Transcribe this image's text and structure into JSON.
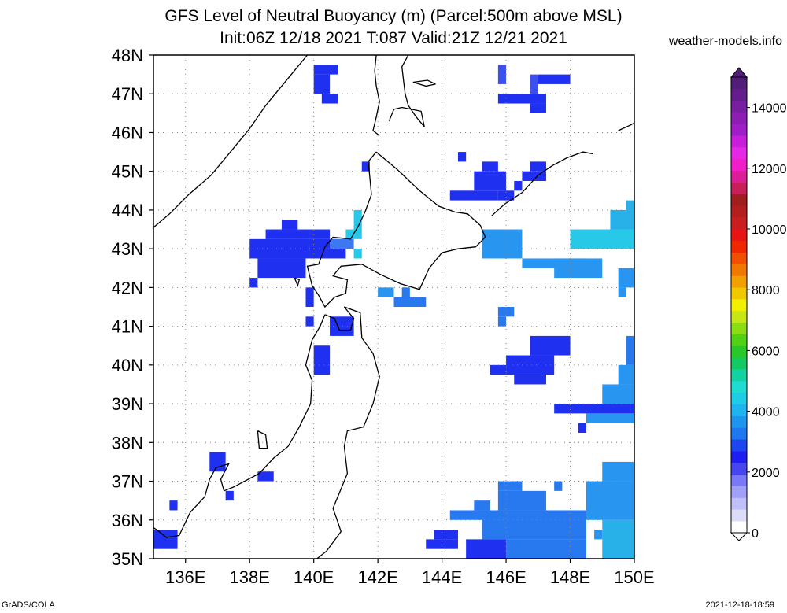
{
  "title_line1": "GFS Level of Neutral Buoyancy (m) (Parcel:500m above MSL)",
  "title_line2": "Init:06Z 12/18 2021 T:087 Valid:21Z 12/21 2021",
  "site": "weather-models.info",
  "footer_left": "GrADS/COLA",
  "footer_right": "2021-12-18-18:59",
  "map": {
    "lon_range": [
      135,
      150
    ],
    "lat_range": [
      35,
      48
    ],
    "lon_ticks": [
      {
        "value": 136,
        "label": "136E"
      },
      {
        "value": 138,
        "label": "138E"
      },
      {
        "value": 140,
        "label": "140E"
      },
      {
        "value": 142,
        "label": "142E"
      },
      {
        "value": 144,
        "label": "144E"
      },
      {
        "value": 146,
        "label": "146E"
      },
      {
        "value": 148,
        "label": "148E"
      },
      {
        "value": 150,
        "label": "150E"
      }
    ],
    "lat_ticks": [
      {
        "value": 35,
        "label": "35N"
      },
      {
        "value": 36,
        "label": "36N"
      },
      {
        "value": 37,
        "label": "37N"
      },
      {
        "value": 38,
        "label": "38N"
      },
      {
        "value": 39,
        "label": "39N"
      },
      {
        "value": 40,
        "label": "40N"
      },
      {
        "value": 41,
        "label": "41N"
      },
      {
        "value": 42,
        "label": "42N"
      },
      {
        "value": 43,
        "label": "43N"
      },
      {
        "value": 44,
        "label": "44N"
      },
      {
        "value": 45,
        "label": "45N"
      },
      {
        "value": 46,
        "label": "46N"
      },
      {
        "value": 47,
        "label": "47N"
      },
      {
        "value": 48,
        "label": "48N"
      }
    ],
    "grid": true,
    "cells": [
      {
        "lon": 140.0,
        "lat": 47.5,
        "lon2": 140.75,
        "lat2": 47.75,
        "color": "#2030f0"
      },
      {
        "lon": 140.0,
        "lat": 47.0,
        "lon2": 140.5,
        "lat2": 47.5,
        "color": "#2030f0"
      },
      {
        "lon": 140.25,
        "lat": 46.75,
        "lon2": 140.75,
        "lat2": 47.0,
        "color": "#2030f0"
      },
      {
        "lon": 145.75,
        "lat": 47.25,
        "lon2": 146.0,
        "lat2": 47.75,
        "color": "#3c50f0"
      },
      {
        "lon": 145.75,
        "lat": 46.75,
        "lon2": 147.25,
        "lat2": 47.0,
        "color": "#2030f0"
      },
      {
        "lon": 146.75,
        "lat": 46.5,
        "lon2": 147.25,
        "lat2": 46.75,
        "color": "#2030f0"
      },
      {
        "lon": 146.75,
        "lat": 47.0,
        "lon2": 147.0,
        "lat2": 47.5,
        "color": "#3c50f0"
      },
      {
        "lon": 147.0,
        "lat": 47.25,
        "lon2": 148.0,
        "lat2": 47.5,
        "color": "#2030f0"
      },
      {
        "lon": 144.5,
        "lat": 45.25,
        "lon2": 144.75,
        "lat2": 45.5,
        "color": "#2030f0"
      },
      {
        "lon": 145.0,
        "lat": 44.5,
        "lon2": 146.0,
        "lat2": 45.0,
        "color": "#2030f0"
      },
      {
        "lon": 144.25,
        "lat": 44.25,
        "lon2": 145.75,
        "lat2": 44.5,
        "color": "#2030f0"
      },
      {
        "lon": 145.25,
        "lat": 45.0,
        "lon2": 145.75,
        "lat2": 45.25,
        "color": "#2030f0"
      },
      {
        "lon": 145.75,
        "lat": 44.25,
        "lon2": 146.25,
        "lat2": 44.5,
        "color": "#2030f0"
      },
      {
        "lon": 146.25,
        "lat": 44.5,
        "lon2": 146.5,
        "lat2": 44.75,
        "color": "#2030f0"
      },
      {
        "lon": 146.5,
        "lat": 44.75,
        "lon2": 147.25,
        "lat2": 45.0,
        "color": "#2030f0"
      },
      {
        "lon": 146.75,
        "lat": 45.0,
        "lon2": 147.25,
        "lat2": 45.25,
        "color": "#2030f0"
      },
      {
        "lon": 141.5,
        "lat": 45.0,
        "lon2": 141.75,
        "lat2": 45.25,
        "color": "#2030f0"
      },
      {
        "lon": 138.0,
        "lat": 42.75,
        "lon2": 141.0,
        "lat2": 43.25,
        "color": "#2030f0"
      },
      {
        "lon": 138.5,
        "lat": 43.25,
        "lon2": 140.5,
        "lat2": 43.5,
        "color": "#2030f0"
      },
      {
        "lon": 139.0,
        "lat": 43.5,
        "lon2": 139.5,
        "lat2": 43.75,
        "color": "#2030f0"
      },
      {
        "lon": 138.25,
        "lat": 42.25,
        "lon2": 139.75,
        "lat2": 42.75,
        "color": "#2030f0"
      },
      {
        "lon": 139.75,
        "lat": 41.75,
        "lon2": 140.0,
        "lat2": 42.0,
        "color": "#2030f0"
      },
      {
        "lon": 138.0,
        "lat": 42.0,
        "lon2": 138.25,
        "lat2": 42.25,
        "color": "#2030f0"
      },
      {
        "lon": 140.5,
        "lat": 43.0,
        "lon2": 141.25,
        "lat2": 43.25,
        "color": "#3c78f0"
      },
      {
        "lon": 141.25,
        "lat": 43.5,
        "lon2": 141.5,
        "lat2": 44.0,
        "color": "#28c8e8"
      },
      {
        "lon": 141.0,
        "lat": 43.25,
        "lon2": 141.5,
        "lat2": 43.5,
        "color": "#28c8e8"
      },
      {
        "lon": 141.25,
        "lat": 42.75,
        "lon2": 141.5,
        "lat2": 43.0,
        "color": "#28c8e8"
      },
      {
        "lon": 142.0,
        "lat": 41.75,
        "lon2": 142.5,
        "lat2": 42.0,
        "color": "#2896f0"
      },
      {
        "lon": 142.5,
        "lat": 41.5,
        "lon2": 143.5,
        "lat2": 41.75,
        "color": "#2878f0"
      },
      {
        "lon": 142.75,
        "lat": 41.75,
        "lon2": 143.0,
        "lat2": 42.0,
        "color": "#2878f0"
      },
      {
        "lon": 140.5,
        "lat": 40.75,
        "lon2": 141.25,
        "lat2": 41.25,
        "color": "#2030f0"
      },
      {
        "lon": 139.75,
        "lat": 41.0,
        "lon2": 140.0,
        "lat2": 41.25,
        "color": "#2030f0"
      },
      {
        "lon": 140.0,
        "lat": 39.75,
        "lon2": 140.5,
        "lat2": 40.5,
        "color": "#2030f0"
      },
      {
        "lon": 139.75,
        "lat": 41.5,
        "lon2": 140.0,
        "lat2": 41.75,
        "color": "#2030f0"
      },
      {
        "lon": 145.75,
        "lat": 41.25,
        "lon2": 146.25,
        "lat2": 41.5,
        "color": "#2878f0"
      },
      {
        "lon": 145.75,
        "lat": 41.0,
        "lon2": 146.0,
        "lat2": 41.25,
        "color": "#2878f0"
      },
      {
        "lon": 145.25,
        "lat": 42.75,
        "lon2": 146.5,
        "lat2": 43.5,
        "color": "#2896f0"
      },
      {
        "lon": 146.5,
        "lat": 42.5,
        "lon2": 148.5,
        "lat2": 42.75,
        "color": "#2896f0"
      },
      {
        "lon": 147.5,
        "lat": 42.25,
        "lon2": 149.0,
        "lat2": 42.75,
        "color": "#2896f0"
      },
      {
        "lon": 148.0,
        "lat": 43.0,
        "lon2": 150.0,
        "lat2": 43.5,
        "color": "#28c8e8"
      },
      {
        "lon": 149.25,
        "lat": 43.5,
        "lon2": 150.0,
        "lat2": 44.0,
        "color": "#28b0e8"
      },
      {
        "lon": 149.75,
        "lat": 44.0,
        "lon2": 150.0,
        "lat2": 44.25,
        "color": "#28b0e8"
      },
      {
        "lon": 149.5,
        "lat": 42.0,
        "lon2": 150.0,
        "lat2": 42.5,
        "color": "#2896f0"
      },
      {
        "lon": 149.5,
        "lat": 41.75,
        "lon2": 149.75,
        "lat2": 42.0,
        "color": "#2896f0"
      },
      {
        "lon": 146.75,
        "lat": 40.25,
        "lon2": 148.0,
        "lat2": 40.75,
        "color": "#2030f0"
      },
      {
        "lon": 146.0,
        "lat": 39.75,
        "lon2": 147.5,
        "lat2": 40.25,
        "color": "#2030f0"
      },
      {
        "lon": 145.5,
        "lat": 39.75,
        "lon2": 146.0,
        "lat2": 40.0,
        "color": "#2030f0"
      },
      {
        "lon": 146.25,
        "lat": 39.5,
        "lon2": 147.25,
        "lat2": 39.75,
        "color": "#2030f0"
      },
      {
        "lon": 147.5,
        "lat": 38.75,
        "lon2": 150.0,
        "lat2": 39.0,
        "color": "#2030f0"
      },
      {
        "lon": 148.5,
        "lat": 38.5,
        "lon2": 150.0,
        "lat2": 38.75,
        "color": "#2896f0"
      },
      {
        "lon": 148.25,
        "lat": 38.25,
        "lon2": 148.5,
        "lat2": 38.5,
        "color": "#2030f0"
      },
      {
        "lon": 149.0,
        "lat": 39.0,
        "lon2": 150.0,
        "lat2": 39.5,
        "color": "#2896f0"
      },
      {
        "lon": 149.5,
        "lat": 39.5,
        "lon2": 150.0,
        "lat2": 40.0,
        "color": "#2896f0"
      },
      {
        "lon": 149.75,
        "lat": 40.0,
        "lon2": 150.0,
        "lat2": 40.75,
        "color": "#2878f0"
      },
      {
        "lon": 136.75,
        "lat": 37.25,
        "lon2": 137.25,
        "lat2": 37.75,
        "color": "#2030f0"
      },
      {
        "lon": 137.25,
        "lat": 36.5,
        "lon2": 137.5,
        "lat2": 36.75,
        "color": "#2030f0"
      },
      {
        "lon": 138.25,
        "lat": 37.0,
        "lon2": 138.75,
        "lat2": 37.25,
        "color": "#2030f0"
      },
      {
        "lon": 135.5,
        "lat": 36.25,
        "lon2": 135.75,
        "lat2": 36.5,
        "color": "#2030f0"
      },
      {
        "lon": 135.0,
        "lat": 35.25,
        "lon2": 135.75,
        "lat2": 35.75,
        "color": "#2030f0"
      },
      {
        "lon": 143.5,
        "lat": 35.25,
        "lon2": 144.5,
        "lat2": 35.5,
        "color": "#2030f0"
      },
      {
        "lon": 143.75,
        "lat": 35.5,
        "lon2": 144.5,
        "lat2": 35.75,
        "color": "#2030f0"
      },
      {
        "lon": 144.75,
        "lat": 35.0,
        "lon2": 146.0,
        "lat2": 35.5,
        "color": "#2030f0"
      },
      {
        "lon": 145.25,
        "lat": 35.5,
        "lon2": 148.5,
        "lat2": 36.25,
        "color": "#2878f0"
      },
      {
        "lon": 146.0,
        "lat": 35.0,
        "lon2": 148.5,
        "lat2": 35.5,
        "color": "#2878f0"
      },
      {
        "lon": 145.75,
        "lat": 36.25,
        "lon2": 147.25,
        "lat2": 36.75,
        "color": "#2878f0"
      },
      {
        "lon": 145.75,
        "lat": 36.75,
        "lon2": 146.5,
        "lat2": 37.0,
        "color": "#2878f0"
      },
      {
        "lon": 144.25,
        "lat": 36.0,
        "lon2": 145.25,
        "lat2": 36.25,
        "color": "#2878f0"
      },
      {
        "lon": 145.0,
        "lat": 36.25,
        "lon2": 145.5,
        "lat2": 36.5,
        "color": "#2878f0"
      },
      {
        "lon": 147.5,
        "lat": 36.75,
        "lon2": 147.75,
        "lat2": 37.0,
        "color": "#2878f0"
      },
      {
        "lon": 148.5,
        "lat": 36.0,
        "lon2": 150.0,
        "lat2": 37.0,
        "color": "#2896f0"
      },
      {
        "lon": 149.0,
        "lat": 37.0,
        "lon2": 150.0,
        "lat2": 37.5,
        "color": "#2896f0"
      },
      {
        "lon": 149.0,
        "lat": 35.0,
        "lon2": 150.0,
        "lat2": 36.0,
        "color": "#28b0e8"
      },
      {
        "lon": 148.75,
        "lat": 35.5,
        "lon2": 149.0,
        "lat2": 35.75,
        "color": "#2896f0"
      }
    ]
  },
  "colorbar": {
    "min": 0,
    "max": 15000,
    "labels": [
      {
        "value": 0,
        "label": "0"
      },
      {
        "value": 2000,
        "label": "2000"
      },
      {
        "value": 4000,
        "label": "4000"
      },
      {
        "value": 6000,
        "label": "6000"
      },
      {
        "value": 8000,
        "label": "8000"
      },
      {
        "value": 10000,
        "label": "10000"
      },
      {
        "value": 12000,
        "label": "12000"
      },
      {
        "value": 14000,
        "label": "14000"
      }
    ],
    "colors": [
      "#ffffff",
      "#dcdcf8",
      "#c0c0f8",
      "#a0a0f8",
      "#7878f8",
      "#4646f0",
      "#1e1ef0",
      "#1e46f0",
      "#1e78f0",
      "#1e96f0",
      "#1eb4f0",
      "#1ecce6",
      "#1edcd2",
      "#14d2a0",
      "#14c864",
      "#28c828",
      "#50d214",
      "#8cdc14",
      "#c8e614",
      "#f0f000",
      "#f0c800",
      "#f0a000",
      "#f07800",
      "#f05000",
      "#f02800",
      "#e61414",
      "#c81e1e",
      "#b41e1e",
      "#a01e1e",
      "#c81e5a",
      "#dc1e96",
      "#f01ec8",
      "#e628e6",
      "#c81edc",
      "#a01ec8",
      "#8c1eb4",
      "#781ea0",
      "#641e8c",
      "#501e78"
    ]
  }
}
